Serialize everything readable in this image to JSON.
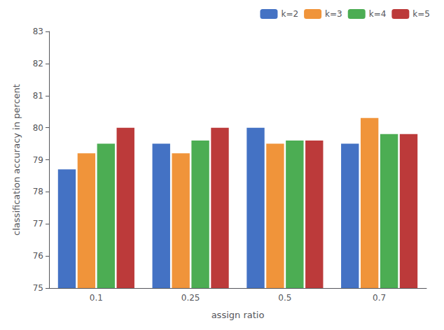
{
  "chart_data": {
    "type": "bar",
    "categories": [
      "0.1",
      "0.25",
      "0.5",
      "0.7"
    ],
    "series": [
      {
        "name": "k=2",
        "color": "#4472c4",
        "values": [
          78.7,
          79.5,
          80.0,
          79.5
        ]
      },
      {
        "name": "k=3",
        "color": "#f0943a",
        "values": [
          79.2,
          79.2,
          79.5,
          80.3
        ]
      },
      {
        "name": "k=4",
        "color": "#4cad53",
        "values": [
          79.5,
          79.6,
          79.6,
          79.8
        ]
      },
      {
        "name": "k=5",
        "color": "#bc3a3a",
        "values": [
          80.0,
          80.0,
          79.6,
          79.8
        ]
      }
    ],
    "xlabel": "assign ratio",
    "ylabel": "classification accuracy in percent",
    "ylim": [
      75,
      83
    ],
    "yticks": [
      75,
      76,
      77,
      78,
      79,
      80,
      81,
      82,
      83
    ],
    "legend": "upper right",
    "grid": false
  }
}
